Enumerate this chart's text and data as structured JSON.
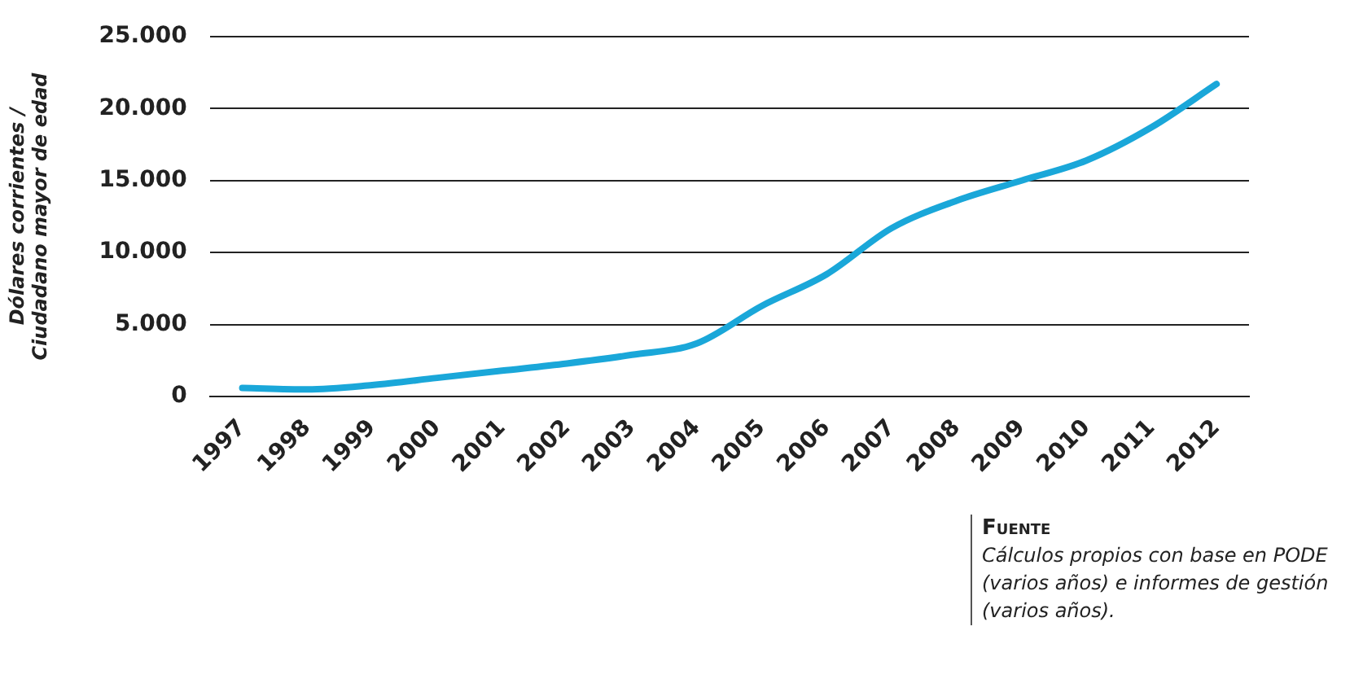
{
  "chart_data": {
    "type": "line",
    "ylabel": "Dólares corrientes / Ciudadano mayor de edad",
    "categories": [
      "1997",
      "1998",
      "1999",
      "2000",
      "2001",
      "2002",
      "2003",
      "2004",
      "2005",
      "2006",
      "2007",
      "2008",
      "2009",
      "2010",
      "2011",
      "2012"
    ],
    "series": [
      {
        "color": "#1aa7d9",
        "values": [
          600,
          500,
          800,
          1300,
          1800,
          2300,
          2900,
          3700,
          6300,
          8500,
          11700,
          13600,
          15000,
          16400,
          18700,
          21700
        ]
      }
    ],
    "ylim": [
      0,
      25000
    ],
    "yticks": [
      {
        "value": 0,
        "label": "0"
      },
      {
        "value": 5000,
        "label": "5.000"
      },
      {
        "value": 10000,
        "label": "10.000"
      },
      {
        "value": 15000,
        "label": "15.000"
      },
      {
        "value": 20000,
        "label": "20.000"
      },
      {
        "value": 25000,
        "label": "25.000"
      }
    ],
    "grid": "y",
    "legend": false,
    "marker": "none",
    "line_style": "solid",
    "annotations": [
      "Fuente",
      "Cálculos propios con base en PODE (varios años) e informes de gestión (varios años)."
    ]
  }
}
